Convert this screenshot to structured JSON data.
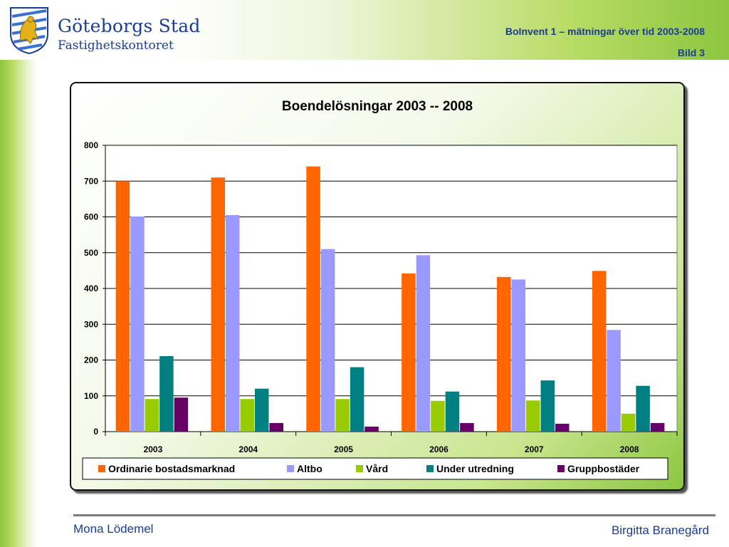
{
  "header": {
    "org_name": "Göteborgs Stad",
    "org_dept": "Fastighetskontoret",
    "title": "BoInvent 1 – mätningar över tid 2003-2008",
    "slide": "Bild 3",
    "logo_icon": "city-crest-icon"
  },
  "footer": {
    "left": "Mona Lödemel",
    "right": "Birgitta Branegård"
  },
  "chart_data": {
    "type": "bar",
    "title": "Boendelösningar 2003 -- 2008",
    "xlabel": "",
    "ylabel": "",
    "categories": [
      "2003",
      "2004",
      "2005",
      "2006",
      "2007",
      "2008"
    ],
    "ylim": [
      0,
      800
    ],
    "yticks": [
      0,
      100,
      200,
      300,
      400,
      500,
      600,
      700,
      800
    ],
    "grid": true,
    "legend_position": "bottom",
    "series": [
      {
        "name": "Ordinarie bostadsmarknad",
        "color": "#ff6600",
        "values": [
          700,
          710,
          741,
          442,
          432,
          449
        ]
      },
      {
        "name": "Altbo",
        "color": "#9999ff",
        "values": [
          601,
          605,
          510,
          493,
          425,
          284
        ]
      },
      {
        "name": "Vård",
        "color": "#99cc00",
        "values": [
          91,
          91,
          91,
          86,
          87,
          50
        ]
      },
      {
        "name": "Under utredning",
        "color": "#008080",
        "values": [
          211,
          120,
          180,
          112,
          143,
          128
        ]
      },
      {
        "name": "Gruppbostäder",
        "color": "#660066",
        "values": [
          95,
          24,
          14,
          24,
          22,
          24
        ]
      }
    ]
  }
}
